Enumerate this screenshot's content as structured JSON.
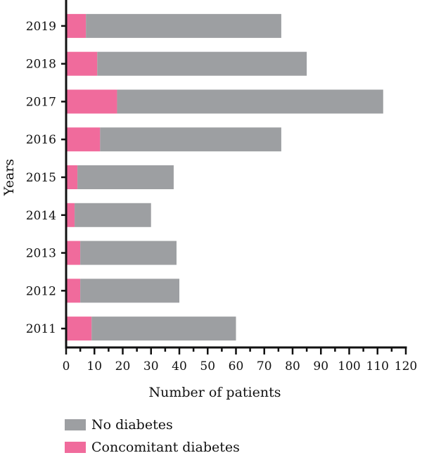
{
  "chart_data": {
    "type": "bar",
    "orientation": "horizontal",
    "stacked": true,
    "xlabel": "Number of patients",
    "ylabel": "Years",
    "xlim": [
      0,
      120
    ],
    "x_ticks": [
      0,
      10,
      20,
      30,
      40,
      50,
      60,
      70,
      80,
      90,
      100,
      110,
      120
    ],
    "categories": [
      "2019",
      "2018",
      "2017",
      "2016",
      "2015",
      "2014",
      "2013",
      "2012",
      "2011"
    ],
    "series": [
      {
        "name": "Concomitant diabetes",
        "color": "#f06b9c",
        "values": [
          7,
          11,
          18,
          12,
          4,
          3,
          5,
          5,
          9
        ]
      },
      {
        "name": "No diabetes",
        "color": "#9d9fa2",
        "values": [
          69,
          74,
          94,
          64,
          34,
          27,
          34,
          35,
          51
        ]
      }
    ],
    "grid": false,
    "legend_position": "bottom-left"
  },
  "legend": {
    "items": [
      {
        "label": "No diabetes",
        "color": "#9d9fa2"
      },
      {
        "label": "Concomitant diabetes",
        "color": "#f06b9c"
      }
    ]
  }
}
